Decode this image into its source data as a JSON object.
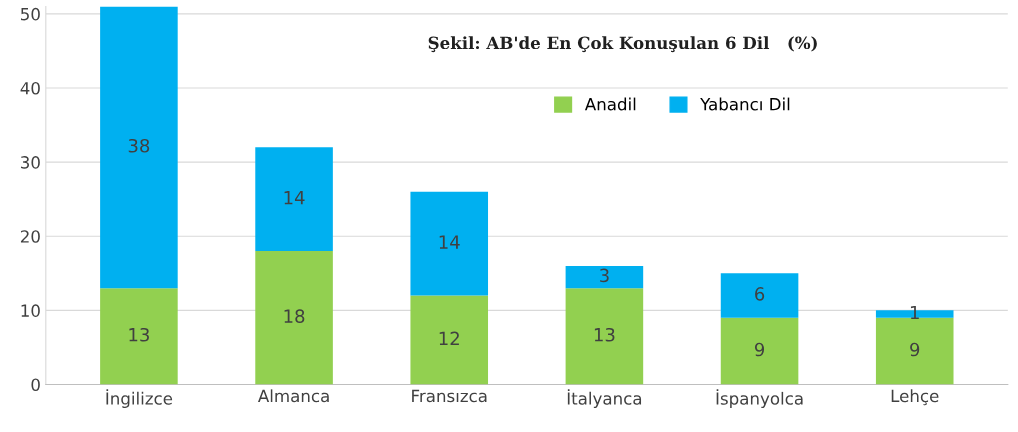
{
  "chart_data": {
    "type": "bar",
    "title": "Şekil: AB'de En Çok Konuşulan 6 Dil   (%)",
    "categories": [
      "İngilizce",
      "Almanca",
      "Fransızca",
      "İtalyanca",
      "İspanyolca",
      "Lehçe"
    ],
    "series": [
      {
        "name": "Anadil",
        "color": "#92d050",
        "values": [
          13,
          18,
          12,
          13,
          9,
          9
        ]
      },
      {
        "name": "Yabancı Dil",
        "color": "#00b0f0",
        "values": [
          38,
          14,
          14,
          3,
          6,
          1
        ]
      }
    ],
    "stacked": true,
    "data_labels": true,
    "ylim": [
      0,
      51
    ],
    "yticks": [
      0,
      10,
      20,
      30,
      40,
      50
    ],
    "grid": "y",
    "legend": "top right"
  }
}
